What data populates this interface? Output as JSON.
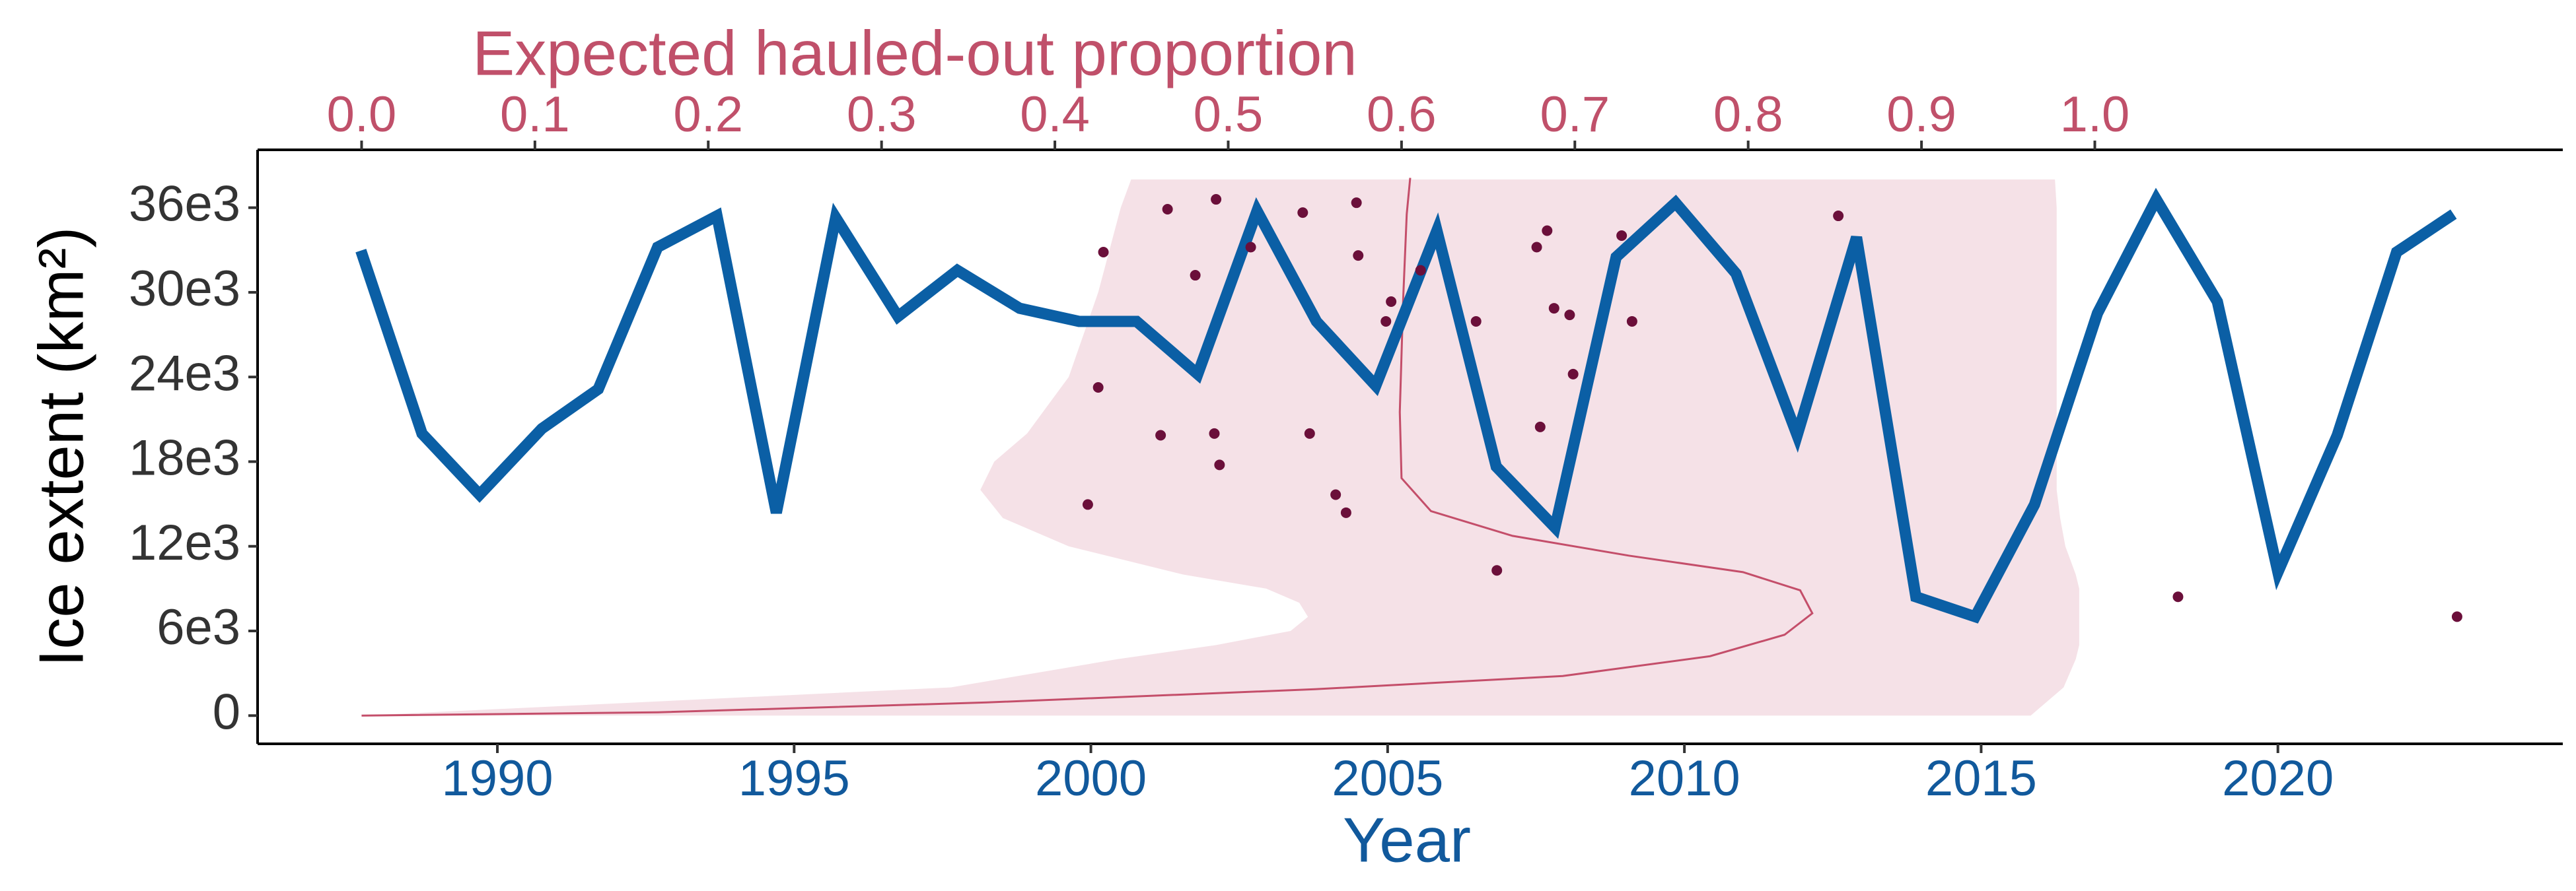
{
  "chart_data": {
    "type": "line",
    "xlabel": "Year",
    "x2label": "Expected hauled-out proportion",
    "ylabel": "Ice extent (km²)",
    "xlim": [
      1985.96,
      2024.8
    ],
    "xticks": [
      1990,
      1995,
      2000,
      2005,
      2010,
      2015,
      2020
    ],
    "x2lim": [
      -0.06,
      1.27
    ],
    "x2ticks": [
      {
        "value": 0,
        "label": "0.0"
      },
      0.1,
      0.2,
      0.3,
      0.4,
      0.5,
      0.6,
      0.7,
      0.8,
      0.9,
      {
        "value": 1,
        "label": "1.0"
      }
    ],
    "ylim": [
      -2000,
      40100
    ],
    "yticks": [
      0,
      {
        "value": 6000,
        "label": "6e3"
      },
      {
        "value": 12000,
        "label": "12e3"
      },
      {
        "value": 18000,
        "label": "18e3"
      },
      {
        "value": 24000,
        "label": "24e3"
      },
      {
        "value": 30000,
        "label": "30e3"
      },
      {
        "value": 36000,
        "label": "36e3"
      }
    ],
    "series": [
      {
        "type": "band",
        "axis": "x2",
        "color": "#f5e1e7",
        "values": [
          0,
          2000,
          4000,
          5000,
          6000,
          7000,
          8000,
          9000,
          10000,
          12000,
          14000,
          16000,
          18000,
          20000,
          24000,
          30000,
          36000,
          38000
        ],
        "lower": [
          0,
          0.34,
          0.436,
          0.493,
          0.536,
          0.546,
          0.541,
          0.522,
          0.474,
          0.408,
          0.37,
          0.357,
          0.365,
          0.384,
          0.408,
          0.425,
          0.438,
          0.444
        ],
        "upper": [
          0.963,
          0.982,
          0.989,
          0.991,
          0.991,
          0.991,
          0.991,
          0.991,
          0.989,
          0.983,
          0.98,
          0.978,
          0.978,
          0.978,
          0.978,
          0.978,
          0.978,
          0.977
        ]
      },
      {
        "type": "line",
        "axis": "x2",
        "color": "#c44e6a",
        "width": 3,
        "x": [
          0,
          0.171,
          0.361,
          0.55,
          0.693,
          0.778,
          0.821,
          0.837,
          0.83,
          0.797,
          0.731,
          0.664,
          0.617,
          0.6,
          0.599,
          0.601,
          0.603,
          0.605
        ],
        "values": [
          0,
          234,
          935,
          1870,
          2805,
          4210,
          5730,
          7250,
          8880,
          10170,
          11340,
          12740,
          14490,
          16830,
          21510,
          29690,
          35540,
          38110
        ]
      },
      {
        "type": "line",
        "color": "#0b5fa5",
        "width": 17,
        "x": [
          1987.7,
          1988.73,
          1989.7,
          1990.75,
          1991.7,
          1992.7,
          1993.7,
          1994.7,
          1995.7,
          1996.75,
          1997.75,
          1998.8,
          1999.8,
          2000.77,
          2001.8,
          2002.8,
          2003.8,
          2004.8,
          2005.83,
          2006.83,
          2007.82,
          2008.85,
          2009.85,
          2010.87,
          2011.9,
          2012.9,
          2013.9,
          2014.9,
          2015.9,
          2016.96,
          2017.95,
          2018.98,
          2020.0,
          2021.0,
          2022.0,
          2022.96
        ],
        "values": [
          32960,
          19990,
          15660,
          20340,
          23140,
          33200,
          35420,
          14380,
          35300,
          28290,
          31560,
          28870,
          27940,
          27940,
          24200,
          35770,
          27940,
          23380,
          34370,
          17650,
          13330,
          32500,
          36350,
          31330,
          19870,
          33900,
          8420,
          7010,
          14960,
          28520,
          36590,
          29340,
          10170,
          19870,
          32850,
          35540
        ]
      },
      {
        "type": "scatter",
        "axis": "x2",
        "color": "#6b0f3a",
        "x": [
          0.419,
          0.428,
          0.425,
          0.461,
          0.465,
          0.481,
          0.492,
          0.495,
          0.493,
          0.513,
          0.543,
          0.547,
          0.562,
          0.568,
          0.574,
          0.575,
          0.591,
          0.594,
          0.611,
          0.643,
          0.655,
          0.678,
          0.68,
          0.684,
          0.688,
          0.699,
          0.697,
          0.727,
          0.733,
          0.852,
          1.048,
          1.209
        ],
        "values": [
          14960,
          32850,
          23260,
          19870,
          35890,
          31210,
          19990,
          17770,
          36590,
          33200,
          35650,
          19990,
          15660,
          14380,
          36350,
          32610,
          27940,
          29340,
          31560,
          27940,
          10290,
          33200,
          20460,
          34370,
          28870,
          24200,
          28400,
          34020,
          27940,
          35420,
          8420,
          7010
        ]
      }
    ]
  }
}
